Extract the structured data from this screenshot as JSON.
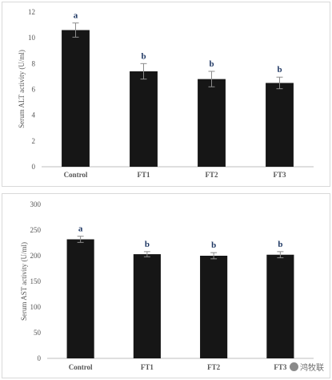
{
  "chart_data": [
    {
      "type": "bar",
      "ylabel": "Serum ALT activity (U/ml)",
      "categories": [
        "Control",
        "FT1",
        "FT2",
        "FT3"
      ],
      "values": [
        10.6,
        7.4,
        6.8,
        6.5
      ],
      "errors": [
        0.55,
        0.6,
        0.6,
        0.45
      ],
      "significance": [
        "a",
        "b",
        "b",
        "b"
      ],
      "ylim": [
        0,
        12
      ],
      "yticks": [
        0,
        2,
        4,
        6,
        8,
        10,
        12
      ],
      "bar_color": "#161616",
      "grid": false
    },
    {
      "type": "bar",
      "ylabel": "Serum AST activity (U/ml)",
      "categories": [
        "Control",
        "FT1",
        "FT2",
        "FT3"
      ],
      "values": [
        232,
        203,
        200,
        202
      ],
      "errors": [
        6,
        5,
        6,
        6
      ],
      "significance": [
        "a",
        "b",
        "b",
        "b"
      ],
      "ylim": [
        0,
        300
      ],
      "yticks": [
        0,
        50,
        100,
        150,
        200,
        250,
        300
      ],
      "bar_color": "#161616",
      "grid": false
    }
  ],
  "watermark": {
    "text": "鸿牧联"
  }
}
